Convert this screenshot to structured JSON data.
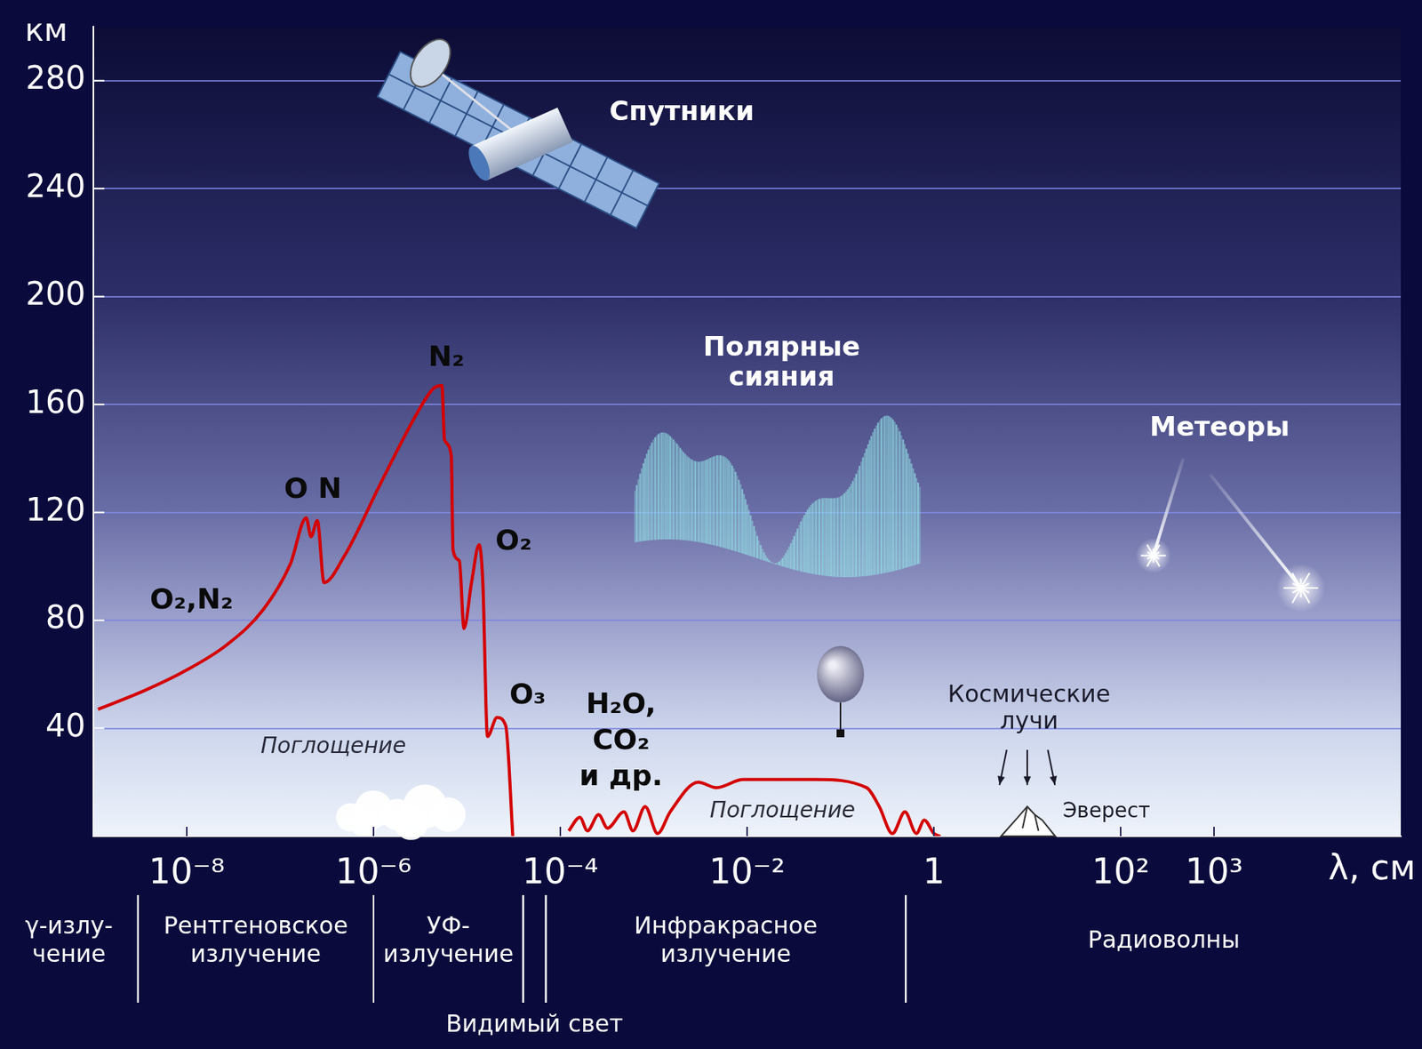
{
  "chart_data": {
    "type": "line",
    "x_label": "λ, см",
    "y_label": "км",
    "log": "x",
    "grid": "y",
    "color": "#d40000",
    "xlim": [
      1e-09,
      100000.0
    ],
    "xticks": [
      {
        "value": 1e-08,
        "label": "10⁻⁸"
      },
      {
        "value": 1e-06,
        "label": "10⁻⁶"
      },
      {
        "value": 0.0001,
        "label": "10⁻⁴"
      },
      {
        "value": 0.01,
        "label": "10⁻²"
      },
      1,
      {
        "value": 100,
        "label": "10²"
      },
      {
        "value": 1000,
        "label": "10³"
      }
    ],
    "ylim": [
      0,
      300
    ],
    "yticks": [
      40,
      80,
      120,
      160,
      200,
      240,
      280
    ],
    "x": [
      1.12e-09,
      3.55e-09,
      9.3e-09,
      2.7e-08,
      6.6e-08,
      1.29e-07,
      1.9e-07,
      2.14e-07,
      2.5e-07,
      2.95e-07,
      4.9e-07,
      1.2e-06,
      2.95e-06,
      4.4e-06,
      5.4e-06,
      5.75e-06,
      6.8e-06,
      7.1e-06,
      8.3e-06,
      9.3e-06,
      1.12e-05,
      1.35e-05,
      1.48e-05,
      1.66e-05,
      2.1e-05,
      2.6e-05,
      3.1e-05,
      5e-05,
      0.000123,
      0.000162,
      0.000195,
      0.000257,
      0.00032,
      0.00048,
      0.0006,
      0.00081,
      0.0011,
      0.0015,
      0.003,
      0.0047,
      0.0091,
      0.055,
      0.19,
      0.26,
      0.36,
      0.49,
      0.65,
      0.79,
      1.0,
      1.17
    ],
    "values": [
      47,
      54,
      61,
      71,
      84,
      101,
      118,
      111,
      117,
      94,
      104,
      131,
      157,
      166,
      167,
      147,
      141,
      106,
      102,
      77,
      94,
      108,
      94,
      37,
      44,
      41,
      0,
      null,
      2,
      7,
      2,
      8,
      3,
      9,
      2,
      11,
      1,
      9,
      20,
      18,
      21,
      21,
      18,
      11,
      1,
      9,
      1,
      6,
      1,
      0
    ],
    "annotations": [
      "O₂,N₂",
      "O N",
      "N₂",
      "O₂",
      "O₃",
      "H₂O,\nCO₂\nи др.",
      "Поглощение",
      "Поглощение",
      "Спутники",
      "Полярные\nсияния",
      "Метеоры",
      "Космические\nлучи",
      "Эверест"
    ],
    "bands": [
      {
        "label": "γ-излу-\nчение",
        "from": 1e-09,
        "to": 3e-09
      },
      {
        "label": "Рентгеновское\nизлучение",
        "from": 3e-09,
        "to": 1e-06
      },
      {
        "label": "УФ-\nизлучение",
        "from": 1e-06,
        "to": 4e-05
      },
      {
        "label": "Видимый свет",
        "from": 4e-05,
        "to": 7e-05
      },
      {
        "label": "Инфракрасное\nизлучение",
        "from": 7e-05,
        "to": 0.5
      },
      {
        "label": "Радиоволны",
        "from": 0.5,
        "to": 100000.0
      }
    ]
  }
}
